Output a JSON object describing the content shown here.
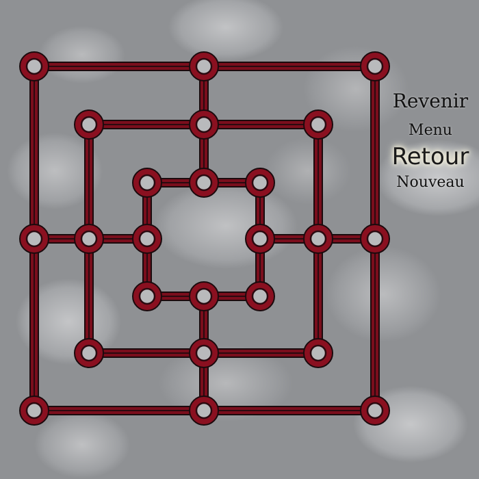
{
  "menu": {
    "revenir": "Revenir",
    "menu": "Menu",
    "retour": "Retour",
    "nouveau": "Nouveau"
  },
  "board": {
    "line_color": "#7a0e1c",
    "line_outline": "#1a0a0d",
    "point_fill": "#8a1020",
    "point_inner": "#b9babc",
    "squares": 3,
    "points": [
      "a1",
      "d1",
      "g1",
      "b2",
      "d2",
      "f2",
      "c3",
      "d3",
      "e3",
      "a4",
      "b4",
      "c4",
      "e4",
      "f4",
      "g4",
      "c5",
      "d5",
      "e5",
      "b6",
      "d6",
      "f6",
      "a7",
      "d7",
      "g7"
    ]
  }
}
